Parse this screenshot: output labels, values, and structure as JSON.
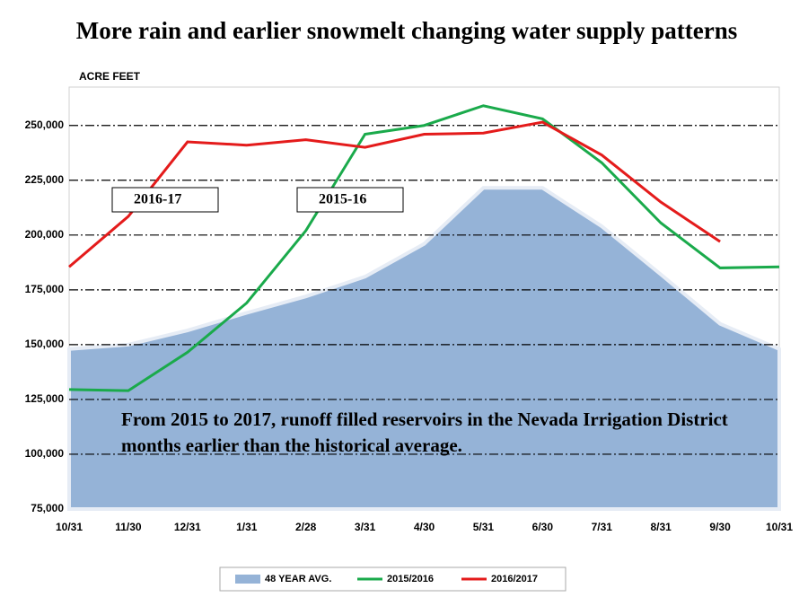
{
  "chart_data": {
    "type": "line",
    "title": "More rain and earlier snowmelt changing water supply patterns",
    "y_label": "ACRE FEET",
    "categories": [
      "10/31",
      "11/30",
      "12/31",
      "1/31",
      "2/28",
      "3/31",
      "4/30",
      "5/31",
      "6/30",
      "7/31",
      "8/31",
      "9/30",
      "10/31"
    ],
    "series": [
      {
        "name": "48 YEAR AVG.",
        "color": "#95b3d7",
        "style": "area",
        "values": [
          148000,
          150000,
          156500,
          164500,
          172000,
          181000,
          196000,
          221500,
          221500,
          204000,
          182000,
          159500,
          148000
        ]
      },
      {
        "name": "2015/2016",
        "color": "#1aaa4b",
        "style": "line",
        "values": [
          129500,
          129000,
          146500,
          169000,
          202000,
          246000,
          250000,
          259000,
          253000,
          233000,
          205500,
          185000,
          185500
        ]
      },
      {
        "name": "2016/2017",
        "color": "#e41b1b",
        "style": "line",
        "values": [
          185500,
          208500,
          242500,
          241000,
          243500,
          240000,
          246000,
          246500,
          251500,
          236500,
          215000,
          197000,
          null
        ]
      }
    ],
    "ylim": [
      75000,
      267500
    ],
    "yticks": [
      {
        "value": 75000,
        "label": "75,000"
      },
      {
        "value": 100000,
        "label": "100,000"
      },
      {
        "value": 125000,
        "label": "125,000"
      },
      {
        "value": 150000,
        "label": "150,000"
      },
      {
        "value": 175000,
        "label": "175,000"
      },
      {
        "value": 200000,
        "label": "200,000"
      },
      {
        "value": 225000,
        "label": "225,000"
      },
      {
        "value": 250000,
        "label": "250,000"
      }
    ],
    "grid": true,
    "legend": "bottom",
    "annotations": [
      "2016-17",
      "2015-16",
      "From 2015 to 2017, runoff filled reservoirs in the Nevada Irrigation District months earlier than the historical average."
    ]
  }
}
